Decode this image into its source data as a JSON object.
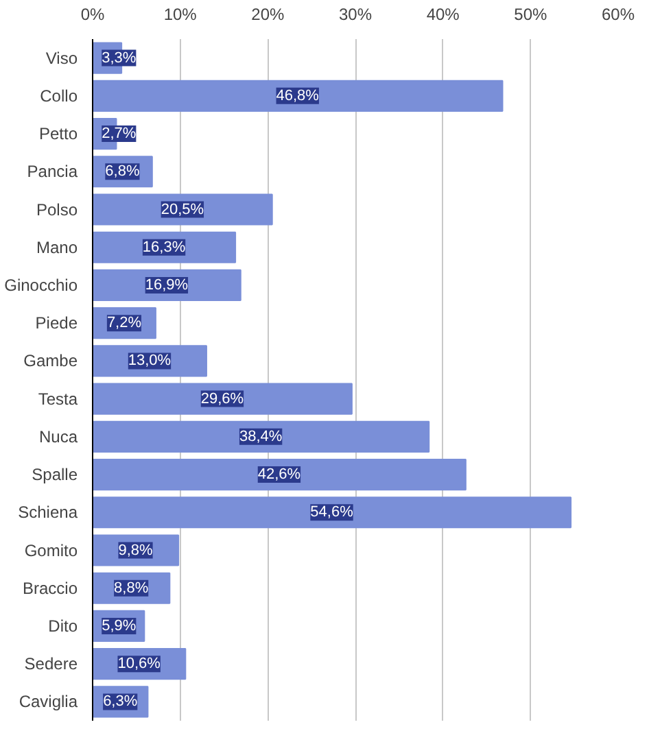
{
  "chart_data": {
    "type": "bar",
    "orientation": "horizontal",
    "categories": [
      "Viso",
      "Collo",
      "Petto",
      "Pancia",
      "Polso",
      "Mano",
      "Ginocchio",
      "Piede",
      "Gambe",
      "Testa",
      "Nuca",
      "Spalle",
      "Schiena",
      "Gomito",
      "Braccio",
      "Dito",
      "Sedere",
      "Caviglia"
    ],
    "values": [
      3.3,
      46.8,
      2.7,
      6.8,
      20.5,
      16.3,
      16.9,
      7.2,
      13.0,
      29.6,
      38.4,
      42.6,
      54.6,
      9.8,
      8.8,
      5.9,
      10.6,
      6.3
    ],
    "value_labels": [
      "3,3%",
      "46,8%",
      "2,7%",
      "6,8%",
      "20,5%",
      "16,3%",
      "16,9%",
      "7,2%",
      "13,0%",
      "29,6%",
      "38,4%",
      "42,6%",
      "54,6%",
      "9,8%",
      "8,8%",
      "5,9%",
      "10,6%",
      "6,3%"
    ],
    "color": "#7a8fd8",
    "xlim": [
      0,
      60
    ],
    "xticks": [
      {
        "value": 0,
        "label": "0%"
      },
      {
        "value": 10,
        "label": "10%"
      },
      {
        "value": 20,
        "label": "20%"
      },
      {
        "value": 30,
        "label": "30%"
      },
      {
        "value": 40,
        "label": "40%"
      },
      {
        "value": 50,
        "label": "50%"
      },
      {
        "value": 60,
        "label": "60%"
      }
    ],
    "grid": "x"
  }
}
